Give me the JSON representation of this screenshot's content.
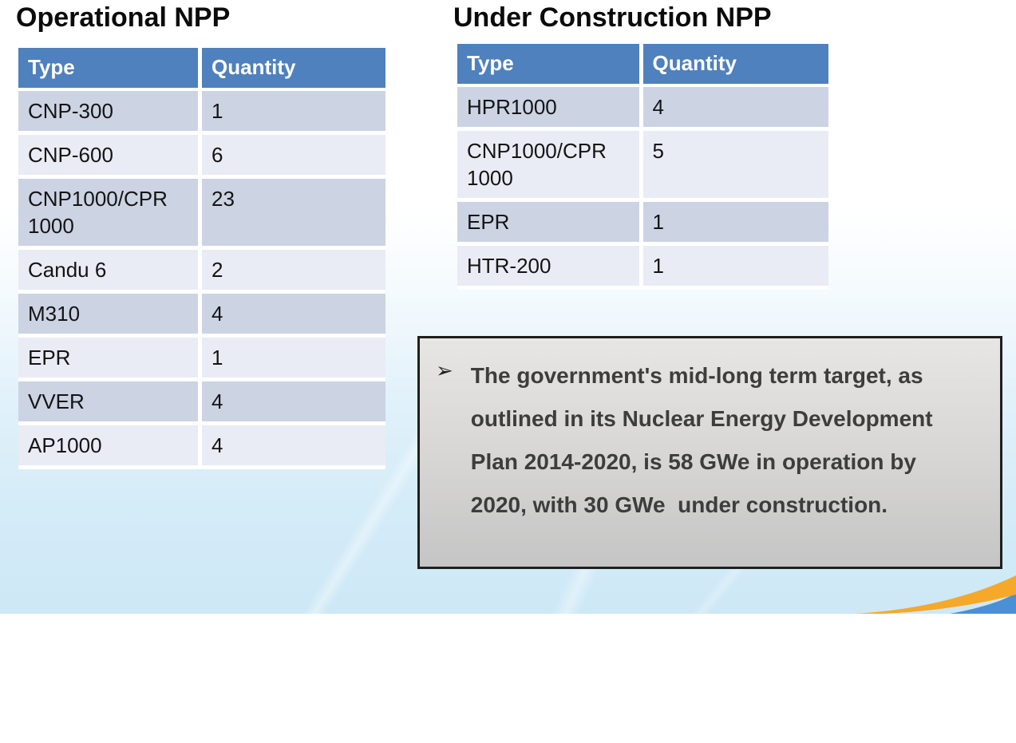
{
  "tables": [
    {
      "title": "Operational NPP",
      "headers": [
        "Type",
        "Quantity"
      ],
      "rows": [
        [
          "CNP-300",
          "1"
        ],
        [
          "CNP-600",
          "6"
        ],
        [
          "CNP1000/CPR 1000",
          "23"
        ],
        [
          "Candu 6",
          "2"
        ],
        [
          "M310",
          "4"
        ],
        [
          "EPR",
          "1"
        ],
        [
          "VVER",
          "4"
        ],
        [
          "AP1000",
          "4"
        ]
      ]
    },
    {
      "title": "Under Construction NPP",
      "headers": [
        "Type",
        "Quantity"
      ],
      "rows": [
        [
          "HPR1000",
          "4"
        ],
        [
          "CNP1000/CPR 1000",
          "5"
        ],
        [
          "EPR",
          "1"
        ],
        [
          "HTR-200",
          "1"
        ]
      ]
    }
  ],
  "note": {
    "bullet": "➢",
    "text": "The government's mid-long term target, as outlined in its Nuclear Energy Development Plan 2014-2020, is 58 GWe in operation by 2020, with 30 GWe  under construction."
  },
  "colors": {
    "header_bg": "#4E81BD",
    "row_dark": "#CCD3E3",
    "row_light": "#E9ECF4",
    "note_border": "#1F1F1F",
    "accent_orange": "#F6A82A",
    "accent_blue": "#4A90D5"
  }
}
